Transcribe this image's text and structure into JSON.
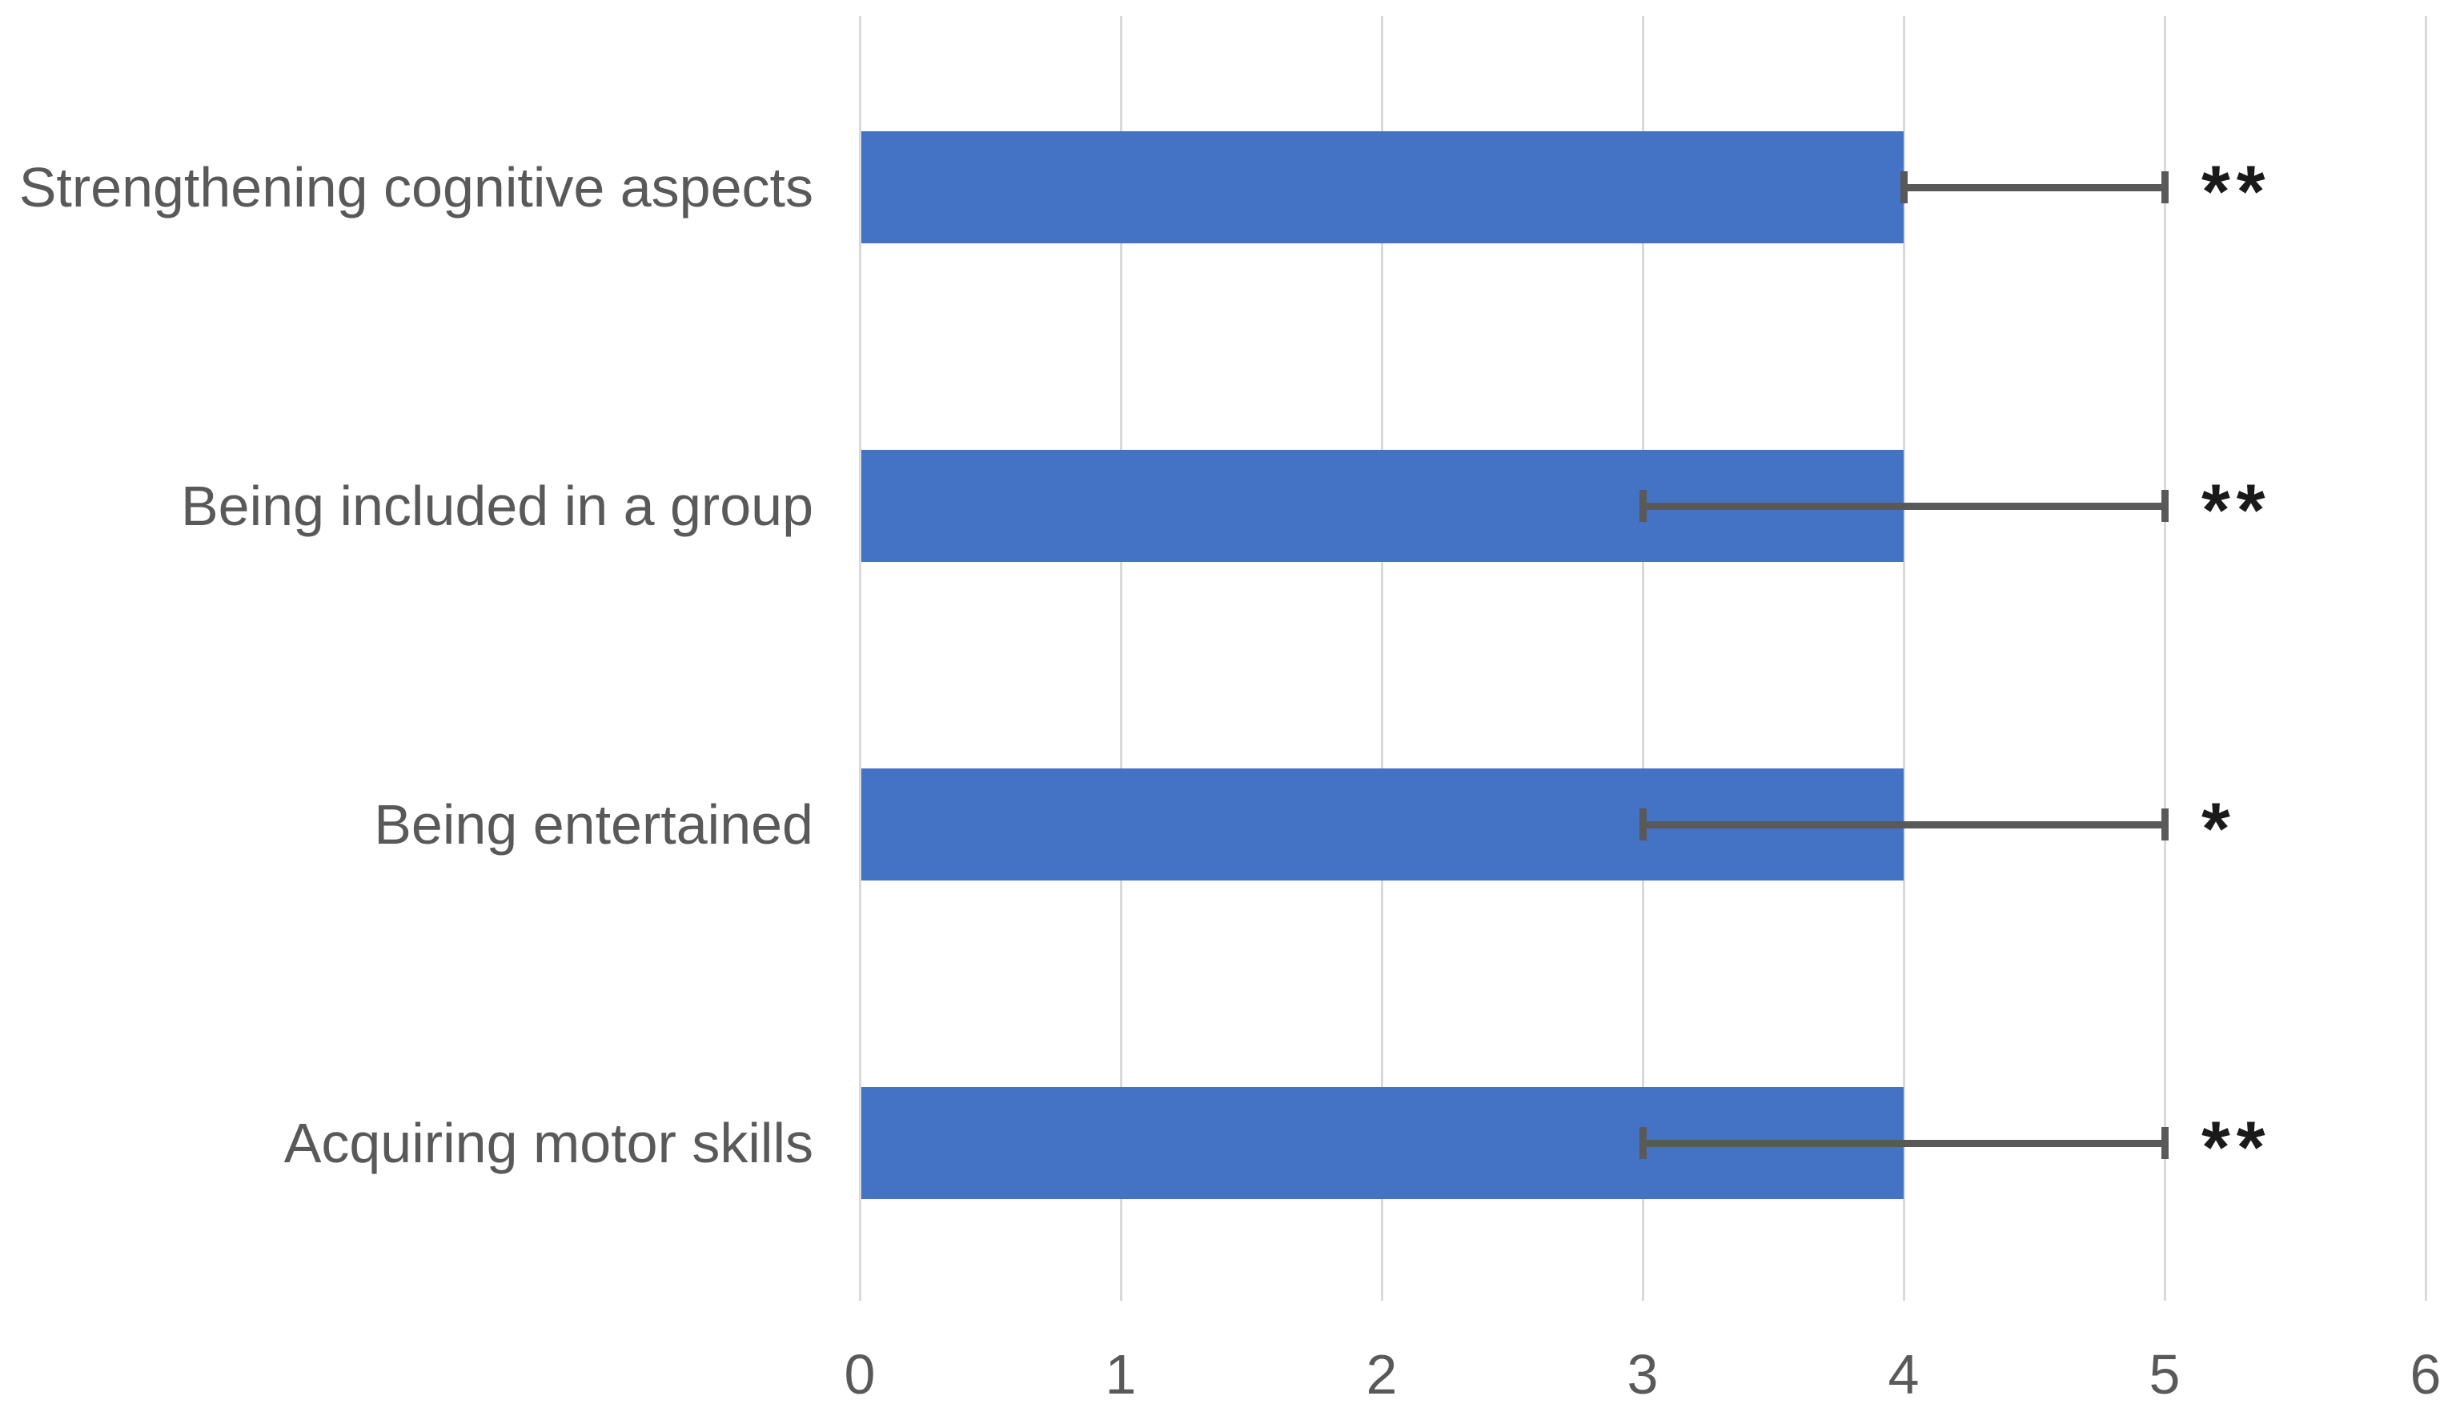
{
  "chart_data": {
    "type": "bar",
    "orientation": "horizontal",
    "title": "",
    "xlabel": "",
    "ylabel": "",
    "categories": [
      "Strengthening cognitive aspects",
      "Being included in a group",
      "Being entertained",
      "Acquiring motor skills"
    ],
    "values": [
      4,
      4,
      4,
      4
    ],
    "error_low": [
      4,
      3,
      3,
      3
    ],
    "error_high": [
      5,
      5,
      5,
      5
    ],
    "significance": [
      "**",
      "**",
      "*",
      "**"
    ],
    "xlim": [
      0,
      6
    ],
    "x_ticks": [
      0,
      1,
      2,
      3,
      4,
      5,
      6
    ],
    "grid": true,
    "legend": false,
    "colors": {
      "bar": "#4472C4",
      "gridline": "#D9D9D9",
      "error_bar": "#595959",
      "axis_text": "#595959",
      "category_text": "#595959",
      "significance_text": "#1a1a1a",
      "background": "#ffffff"
    }
  }
}
